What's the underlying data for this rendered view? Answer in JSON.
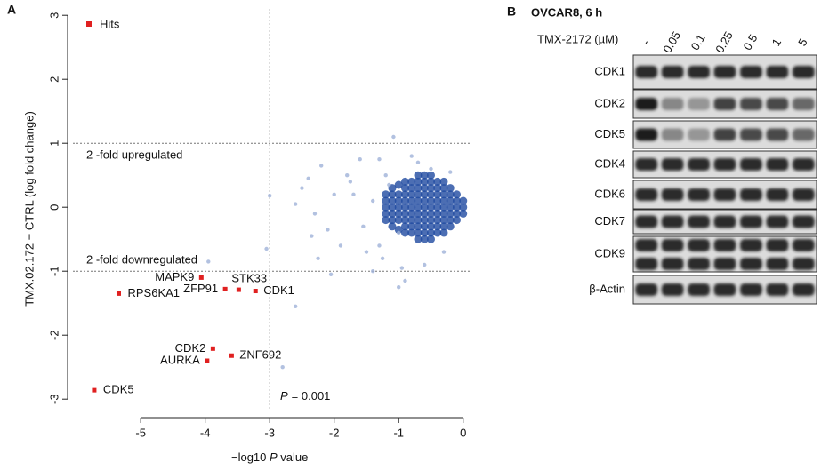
{
  "panels": [
    "A",
    "B"
  ],
  "chart_data": {
    "type": "scatter",
    "x_label": [
      "−log10 ",
      "P",
      " value"
    ],
    "y_label": "TMX.02.172 − CTRL (log fold change)",
    "xlim": [
      -6.05,
      0.1
    ],
    "ylim": [
      -3.15,
      3.1
    ],
    "xticks": [
      -5,
      -4,
      -3,
      -2,
      -1,
      0
    ],
    "yticks": [
      -3,
      -2,
      -1,
      0,
      1,
      2,
      3
    ],
    "hlines": [
      1,
      -1
    ],
    "vline": -3,
    "annotations": [
      "2 -fold upregulated",
      "2 -fold downregulated"
    ],
    "p_annotation": [
      "P",
      "=  0.001"
    ],
    "legend": "top-left",
    "series": [
      {
        "name": "Hits",
        "color": "#e02020",
        "size": 2.5,
        "x": [
          -5.72,
          -5.34,
          -4.06,
          -3.69,
          -3.48,
          -3.22,
          -3.88,
          -3.97,
          -3.59
        ],
        "y": [
          -2.86,
          -1.35,
          -1.1,
          -1.28,
          -1.29,
          -1.31,
          -2.21,
          -2.4,
          -2.32
        ],
        "point_labels": [
          "CDK5",
          "RPS6KA1",
          "MAPK9",
          "ZFP91",
          "STK33",
          "CDK1",
          "CDK2",
          "AURKA",
          "ZNF692"
        ]
      },
      {
        "color": "#9fb1d8",
        "size": 2.2,
        "x": [
          -1.08,
          -2.0,
          -2.5,
          -2.3,
          -2.1,
          -1.8,
          -1.6,
          -1.9,
          -1.5,
          -2.6,
          -3.0,
          -3.05,
          -2.25,
          -2.05,
          -1.4,
          -0.9,
          -1.0,
          -2.6,
          -2.8,
          -3.95,
          -1.3,
          -1.2,
          -1.7,
          -1.3,
          -0.8,
          -0.6,
          -0.5,
          -0.3,
          -0.95,
          -1.15,
          -1.4,
          -1.0,
          -2.4,
          -2.2,
          -1.55,
          -1.75,
          -2.35,
          -1.25,
          -0.7,
          -0.2
        ],
        "y": [
          1.1,
          0.2,
          0.3,
          -0.1,
          -0.35,
          0.5,
          0.75,
          -0.6,
          -0.7,
          0.05,
          0.18,
          -0.65,
          -0.8,
          -1.05,
          -1.0,
          -1.15,
          -1.25,
          -1.55,
          -2.5,
          -0.85,
          0.75,
          0.5,
          0.2,
          -0.6,
          0.8,
          -0.9,
          0.6,
          -0.7,
          -0.95,
          0.35,
          0.1,
          -0.4,
          0.45,
          0.65,
          -0.3,
          0.4,
          -0.45,
          -0.8,
          0.7,
          0.55
        ]
      },
      {
        "color": "#1f4aa0",
        "size": 4.5,
        "x": [
          -1.2,
          -1.2,
          -1.2,
          -1.2,
          -1.2,
          -1.1,
          -1.1,
          -1.1,
          -1.1,
          -1.1,
          -1.1,
          -1.1,
          -1.0,
          -1.0,
          -1.0,
          -1.0,
          -1.0,
          -1.0,
          -1.0,
          -0.9,
          -0.9,
          -0.9,
          -0.9,
          -0.9,
          -0.9,
          -0.9,
          -0.9,
          -0.9,
          -0.8,
          -0.8,
          -0.8,
          -0.8,
          -0.8,
          -0.8,
          -0.8,
          -0.8,
          -0.8,
          -0.7,
          -0.7,
          -0.7,
          -0.7,
          -0.7,
          -0.7,
          -0.7,
          -0.7,
          -0.7,
          -0.7,
          -0.7,
          -0.6,
          -0.6,
          -0.6,
          -0.6,
          -0.6,
          -0.6,
          -0.6,
          -0.6,
          -0.6,
          -0.6,
          -0.6,
          -0.5,
          -0.5,
          -0.5,
          -0.5,
          -0.5,
          -0.5,
          -0.5,
          -0.5,
          -0.5,
          -0.5,
          -0.5,
          -0.4,
          -0.4,
          -0.4,
          -0.4,
          -0.4,
          -0.4,
          -0.4,
          -0.4,
          -0.4,
          -0.3,
          -0.3,
          -0.3,
          -0.3,
          -0.3,
          -0.3,
          -0.3,
          -0.3,
          -0.3,
          -0.2,
          -0.2,
          -0.2,
          -0.2,
          -0.2,
          -0.2,
          -0.2,
          -0.1,
          -0.1,
          -0.1,
          -0.1,
          -0.1,
          0,
          0,
          0
        ],
        "y": [
          -0.2,
          -0.1,
          0,
          0.1,
          0.2,
          -0.3,
          -0.2,
          -0.1,
          0,
          0.1,
          0.2,
          0.3,
          -0.35,
          -0.2,
          -0.1,
          0,
          0.1,
          0.2,
          0.35,
          -0.4,
          -0.3,
          -0.2,
          -0.1,
          0,
          0.1,
          0.2,
          0.3,
          0.4,
          -0.4,
          -0.3,
          -0.2,
          -0.1,
          0,
          0.1,
          0.2,
          0.3,
          0.4,
          -0.5,
          -0.4,
          -0.3,
          -0.2,
          -0.1,
          0,
          0.1,
          0.2,
          0.3,
          0.4,
          0.5,
          -0.5,
          -0.4,
          -0.3,
          -0.2,
          -0.1,
          0,
          0.1,
          0.2,
          0.3,
          0.4,
          0.5,
          -0.5,
          -0.4,
          -0.3,
          -0.2,
          -0.1,
          0,
          0.1,
          0.2,
          0.3,
          0.4,
          0.5,
          -0.4,
          -0.3,
          -0.2,
          -0.1,
          0,
          0.1,
          0.2,
          0.3,
          0.4,
          -0.4,
          -0.3,
          -0.2,
          -0.1,
          0,
          0.1,
          0.2,
          0.3,
          0.4,
          -0.3,
          -0.2,
          -0.1,
          0,
          0.1,
          0.2,
          0.3,
          -0.2,
          -0.1,
          0,
          0.1,
          0.2,
          -0.1,
          0,
          0.1
        ]
      }
    ]
  },
  "blot": {
    "title": "OVCAR8, 6 h",
    "treatment": "TMX-2172 (µM)",
    "lanes": [
      "-",
      "0.05",
      "0.1",
      "0.25",
      "0.5",
      "1",
      "5"
    ],
    "rows": [
      "CDK1",
      "CDK2",
      "CDK5",
      "CDK4",
      "CDK6",
      "CDK7",
      "CDK9",
      "β-Actin"
    ]
  }
}
